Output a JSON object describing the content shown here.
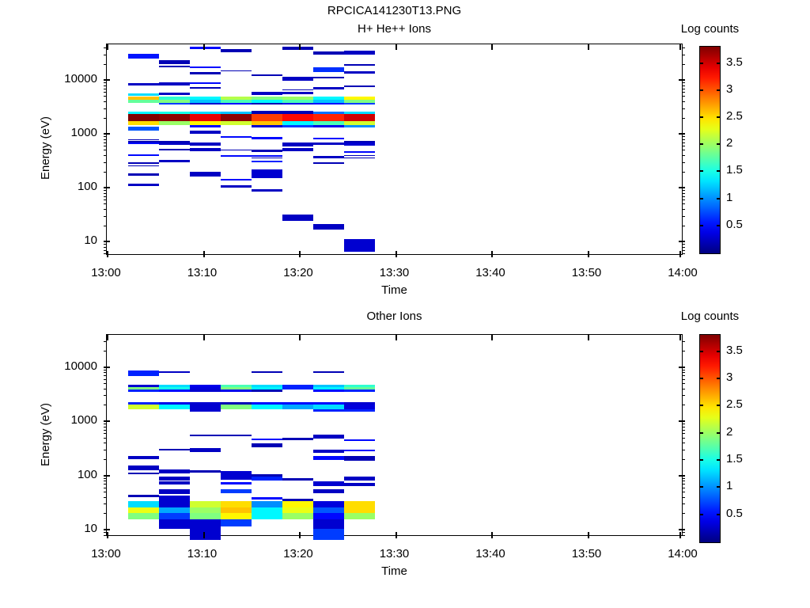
{
  "figure": {
    "title": "RPCICA141230T13.PNG"
  },
  "chart_data": [
    {
      "type": "heatmap",
      "title": "H+ He++ Ions",
      "xlabel": "Time",
      "ylabel": "Energy (eV)",
      "x_ticks": [
        "13:00",
        "13:10",
        "13:20",
        "13:30",
        "13:40",
        "13:50",
        "14:00"
      ],
      "x_tick_minutes": [
        0,
        10,
        20,
        30,
        40,
        50,
        60
      ],
      "y_ticks": [
        "10",
        "100",
        "1000",
        "10000"
      ],
      "y_range_ev": [
        5.5,
        45000
      ],
      "colorbar": {
        "title": "Log counts",
        "ticks": [
          "0.5",
          "1",
          "1.5",
          "2",
          "2.5",
          "3",
          "3.5"
        ],
        "range": [
          0,
          3.8
        ],
        "colormap": "jet"
      },
      "time_start_min": 2.2,
      "column_width_min": 3.2125,
      "n_columns": 8,
      "bands": [
        {
          "e": [
            4300,
            4900
          ],
          "v": [
            2.6,
            1.6,
            1.4,
            2.1,
            1.9,
            2.0,
            1.4,
            2.4
          ]
        },
        {
          "e": [
            3800,
            4300
          ],
          "v": [
            1.8,
            1.9,
            1.2,
            1.7,
            1.4,
            1.7,
            1.2,
            1.9
          ]
        },
        {
          "e": [
            3450,
            3800
          ],
          "v": [
            null,
            0.7,
            0.3,
            0.5,
            0.2,
            0.4,
            0.5,
            0.7
          ]
        },
        {
          "e": [
            2300,
            2600
          ],
          "v": [
            1.4,
            1.5,
            1.3,
            1.2,
            0.2,
            0.2,
            0.9,
            1.3
          ]
        },
        {
          "e": [
            1700,
            2300
          ],
          "v": [
            3.8,
            3.75,
            3.4,
            3.75,
            3.1,
            3.3,
            3.2,
            3.5
          ]
        },
        {
          "e": [
            1450,
            1700
          ],
          "v": [
            2.5,
            2.0,
            2.4,
            2.2,
            2.6,
            1.4,
            1.7,
            2.2
          ]
        },
        {
          "e": [
            1300,
            1450
          ],
          "v": [
            null,
            null,
            0.5,
            null,
            0.3,
            0.7,
            0.4,
            1.0
          ]
        }
      ],
      "bars": [
        [
          0,
          25000,
          31000,
          0.55
        ],
        [
          2,
          37000,
          41000,
          0.5
        ],
        [
          3,
          33000,
          37000,
          0.2
        ],
        [
          5,
          36000,
          41000,
          0.2
        ],
        [
          6,
          29500,
          33500,
          0.2
        ],
        [
          7,
          29500,
          34500,
          0.25
        ],
        [
          1,
          20000,
          23000,
          0.2
        ],
        [
          1,
          17000,
          18500,
          0.2
        ],
        [
          2,
          16500,
          17500,
          0.5
        ],
        [
          6,
          14000,
          17000,
          0.65
        ],
        [
          7,
          18500,
          20000,
          0.2
        ],
        [
          7,
          13000,
          14500,
          0.25
        ],
        [
          2,
          12500,
          14200,
          0.2
        ],
        [
          3,
          14300,
          15200,
          0.2
        ],
        [
          4,
          11800,
          12800,
          0.2
        ],
        [
          5,
          9500,
          11500,
          0.25
        ],
        [
          6,
          10800,
          11500,
          0.2
        ],
        [
          0,
          7800,
          8800,
          0.25
        ],
        [
          1,
          8000,
          8900,
          0.25
        ],
        [
          2,
          8400,
          8900,
          0.5
        ],
        [
          2,
          6900,
          7300,
          0.2
        ],
        [
          6,
          6700,
          7400,
          0.25
        ],
        [
          7,
          7400,
          7800,
          0.2
        ],
        [
          5,
          6400,
          6700,
          0.2
        ],
        [
          1,
          5300,
          5900,
          0.25
        ],
        [
          4,
          5300,
          6000,
          0.25
        ],
        [
          5,
          5500,
          6100,
          0.25
        ],
        [
          0,
          5000,
          5600,
          1.3
        ],
        [
          4,
          2450,
          2700,
          0.2
        ],
        [
          5,
          2450,
          2700,
          0.2
        ],
        [
          0,
          1150,
          1350,
          0.8
        ],
        [
          2,
          1000,
          1150,
          0.25
        ],
        [
          3,
          830,
          890,
          0.5
        ],
        [
          4,
          800,
          860,
          0.5
        ],
        [
          0,
          760,
          800,
          0.2
        ],
        [
          0,
          700,
          730,
          0.2
        ],
        [
          1,
          700,
          745,
          0.2
        ],
        [
          6,
          800,
          845,
          0.5
        ],
        [
          7,
          690,
          730,
          0.2
        ],
        [
          0,
          640,
          680,
          0.5
        ],
        [
          1,
          620,
          700,
          0.25
        ],
        [
          2,
          600,
          690,
          0.25
        ],
        [
          5,
          580,
          680,
          0.25
        ],
        [
          6,
          620,
          690,
          0.25
        ],
        [
          7,
          610,
          700,
          0.3
        ],
        [
          1,
          495,
          520,
          0.2
        ],
        [
          2,
          475,
          535,
          0.25
        ],
        [
          3,
          495,
          515,
          0.2
        ],
        [
          4,
          465,
          500,
          0.2
        ],
        [
          5,
          470,
          535,
          0.25
        ],
        [
          7,
          450,
          470,
          0.5
        ],
        [
          7,
          385,
          405,
          0.2
        ],
        [
          0,
          385,
          408,
          0.5
        ],
        [
          3,
          378,
          400,
          0.5
        ],
        [
          4,
          378,
          400,
          0.5
        ],
        [
          4,
          345,
          368,
          0.2
        ],
        [
          6,
          352,
          390,
          0.25
        ],
        [
          7,
          348,
          365,
          0.2
        ],
        [
          1,
          298,
          332,
          0.25
        ],
        [
          0,
          278,
          300,
          0.2
        ],
        [
          0,
          250,
          262,
          0.2
        ],
        [
          4,
          298,
          318,
          0.6
        ],
        [
          6,
          276,
          292,
          0.2
        ],
        [
          2,
          158,
          200,
          0.25
        ],
        [
          0,
          168,
          185,
          0.2
        ],
        [
          4,
          148,
          218,
          0.3
        ],
        [
          3,
          136,
          145,
          0.5
        ],
        [
          0,
          106,
          120,
          0.25
        ],
        [
          3,
          99,
          112,
          0.25
        ],
        [
          4,
          84,
          95,
          0.25
        ],
        [
          5,
          24,
          32,
          0.25
        ],
        [
          6,
          16.5,
          21,
          0.25
        ],
        [
          7,
          6.5,
          11,
          0.3
        ]
      ]
    },
    {
      "type": "heatmap",
      "title": "Other Ions",
      "xlabel": "Time",
      "ylabel": "Energy (eV)",
      "x_ticks": [
        "13:00",
        "13:10",
        "13:20",
        "13:30",
        "13:40",
        "13:50",
        "14:00"
      ],
      "x_tick_minutes": [
        0,
        10,
        20,
        30,
        40,
        50,
        60
      ],
      "y_ticks": [
        "10",
        "100",
        "1000",
        "10000"
      ],
      "y_range_ev": [
        7.4,
        39000
      ],
      "colorbar": {
        "title": "Log counts",
        "ticks": [
          "0.5",
          "1",
          "1.5",
          "2",
          "2.5",
          "3",
          "3.5"
        ],
        "range": [
          0,
          3.8
        ],
        "colormap": "jet"
      },
      "time_start_min": 2.2,
      "column_width_min": 3.2125,
      "n_columns": 8,
      "bands": [
        {
          "e": [
            4300,
            4650
          ],
          "v": [
            0.3,
            1.3,
            0.4,
            1.7,
            1.3,
            0.6,
            1.2,
            1.6
          ]
        },
        {
          "e": [
            3800,
            4300
          ],
          "v": [
            1.9,
            1.5,
            0.35,
            1.9,
            1.4,
            0.6,
            1.4,
            1.8
          ]
        },
        {
          "e": [
            3500,
            3800
          ],
          "v": [
            0.6,
            0.5,
            0.3,
            0.4,
            0.2,
            null,
            0.5,
            0.6
          ]
        },
        {
          "e": [
            2050,
            2250
          ],
          "v": [
            0.6,
            0.4,
            0.3,
            0.2,
            0.5,
            0.5,
            0.5,
            0.3
          ]
        },
        {
          "e": [
            1650,
            2050
          ],
          "v": [
            2.2,
            1.4,
            0.3,
            1.9,
            1.4,
            1.1,
            1.3,
            0.35
          ]
        },
        {
          "e": [
            1480,
            1650
          ],
          "v": [
            null,
            null,
            0.3,
            null,
            null,
            null,
            0.6,
            0.6
          ]
        },
        {
          "e": [
            26,
            33
          ],
          "v": [
            1.3,
            0.3,
            2.2,
            2.5,
            1.0,
            2.4,
            0.35,
            2.5
          ]
        },
        {
          "e": [
            20,
            26
          ],
          "v": [
            2.3,
            1.1,
            2.0,
            2.6,
            1.4,
            2.3,
            0.8,
            2.5
          ]
        },
        {
          "e": [
            15.5,
            20
          ],
          "v": [
            1.9,
            0.7,
            1.9,
            2.4,
            1.4,
            2.0,
            0.5,
            2.0
          ]
        }
      ],
      "bars": [
        [
          0,
          6900,
          8600,
          0.6
        ],
        [
          1,
          7700,
          8300,
          0.25
        ],
        [
          4,
          7900,
          8300,
          0.2
        ],
        [
          6,
          7900,
          8300,
          0.2
        ],
        [
          2,
          525,
          560,
          0.2
        ],
        [
          3,
          525,
          560,
          0.2
        ],
        [
          6,
          480,
          570,
          0.25
        ],
        [
          4,
          450,
          480,
          0.5
        ],
        [
          5,
          440,
          490,
          0.2
        ],
        [
          7,
          430,
          460,
          0.5
        ],
        [
          4,
          330,
          385,
          0.2
        ],
        [
          1,
          288,
          310,
          0.2
        ],
        [
          2,
          268,
          320,
          0.25
        ],
        [
          6,
          264,
          300,
          0.25
        ],
        [
          7,
          278,
          300,
          0.5
        ],
        [
          0,
          198,
          230,
          0.25
        ],
        [
          6,
          195,
          225,
          0.5
        ],
        [
          7,
          188,
          230,
          0.2
        ],
        [
          0,
          126,
          150,
          0.25
        ],
        [
          0,
          104,
          114,
          0.2
        ],
        [
          1,
          108,
          130,
          0.25
        ],
        [
          2,
          114,
          125,
          0.2
        ],
        [
          3,
          84,
          120,
          0.3
        ],
        [
          4,
          94,
          104,
          0.2
        ],
        [
          1,
          81,
          95,
          0.25
        ],
        [
          4,
          80,
          95,
          0.6
        ],
        [
          5,
          81,
          88,
          0.2
        ],
        [
          7,
          81,
          95,
          0.25
        ],
        [
          1,
          67,
          78,
          0.25
        ],
        [
          3,
          69,
          76,
          0.5
        ],
        [
          6,
          63,
          78,
          0.3
        ],
        [
          7,
          63,
          72,
          0.25
        ],
        [
          3,
          47,
          56,
          0.7
        ],
        [
          1,
          45,
          55,
          0.25
        ],
        [
          6,
          47,
          56,
          0.25
        ],
        [
          0,
          39,
          44,
          0.2
        ],
        [
          1,
          34,
          42,
          0.3
        ],
        [
          4,
          36,
          40,
          0.5
        ],
        [
          5,
          33,
          37,
          0.2
        ],
        [
          1,
          10.5,
          15.5,
          0.3
        ],
        [
          2,
          6.5,
          15.5,
          0.3
        ],
        [
          3,
          11.5,
          15.5,
          0.7
        ],
        [
          6,
          10.5,
          15.5,
          0.3
        ],
        [
          6,
          6.5,
          10.5,
          0.7
        ]
      ]
    }
  ]
}
